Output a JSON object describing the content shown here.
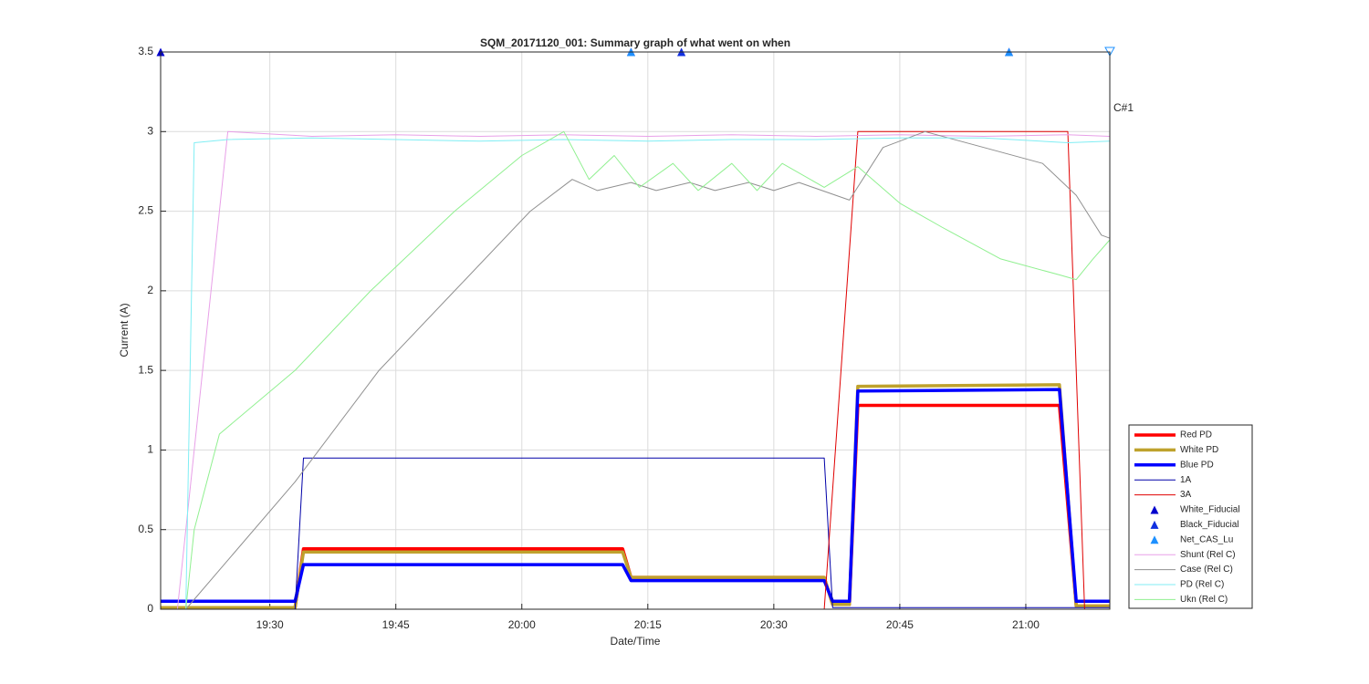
{
  "chart_data": {
    "type": "line",
    "title": "SQM_20171120_001: Summary graph of what went on when",
    "x_label": "Date/Time",
    "y_label": "Current (A)",
    "annotation": "C#1",
    "xlim": [
      "19:17",
      "21:10"
    ],
    "xticks": [
      "19:30",
      "19:45",
      "20:00",
      "20:15",
      "20:30",
      "20:45",
      "21:00"
    ],
    "ylim": [
      0,
      3.5
    ],
    "yticks": [
      0,
      0.5,
      1,
      1.5,
      2,
      2.5,
      3,
      3.5
    ],
    "grid": true,
    "legend": "outside-southeast",
    "series": [
      {
        "name": "Red PD",
        "color": "#ff0000",
        "line_width": 3.5,
        "x": [
          "19:17",
          "19:33",
          "19:34",
          "20:12",
          "20:13",
          "20:36",
          "20:37",
          "20:39",
          "20:40",
          "21:04",
          "21:06",
          "21:10"
        ],
        "values": [
          0.01,
          0.01,
          0.38,
          0.38,
          0.2,
          0.2,
          0.03,
          0.03,
          1.28,
          1.28,
          0.02,
          0.02
        ]
      },
      {
        "name": "White PD",
        "color": "#bfa22d",
        "line_width": 3.5,
        "x": [
          "19:17",
          "19:33",
          "19:34",
          "20:12",
          "20:13",
          "20:36",
          "20:37",
          "20:39",
          "20:40",
          "21:04",
          "21:06",
          "21:10"
        ],
        "values": [
          0.01,
          0.01,
          0.36,
          0.36,
          0.2,
          0.2,
          0.03,
          0.03,
          1.4,
          1.41,
          0.02,
          0.02
        ]
      },
      {
        "name": "Blue PD",
        "color": "#0000ff",
        "line_width": 3.5,
        "x": [
          "19:17",
          "19:33",
          "19:34",
          "20:12",
          "20:13",
          "20:36",
          "20:37",
          "20:39",
          "20:40",
          "21:04",
          "21:06",
          "21:10"
        ],
        "values": [
          0.05,
          0.05,
          0.28,
          0.28,
          0.18,
          0.18,
          0.05,
          0.05,
          1.37,
          1.38,
          0.05,
          0.05
        ]
      },
      {
        "name": "1A",
        "color": "#0000a8",
        "line_width": 1,
        "x": [
          "19:17",
          "19:33",
          "19:34",
          "20:36",
          "20:37",
          "21:10"
        ],
        "values": [
          0,
          0,
          0.95,
          0.95,
          0.01,
          0.01
        ]
      },
      {
        "name": "3A",
        "color": "#e00000",
        "line_width": 1,
        "x": [
          "19:17",
          "20:36",
          "20:40",
          "21:05",
          "21:07",
          "21:10"
        ],
        "values": [
          0,
          0,
          3,
          3,
          0,
          0
        ]
      },
      {
        "name": "White_Fiducial",
        "color": "#0000cd",
        "marker": "triangle",
        "x": [
          "19:17",
          "20:13",
          "20:19",
          "20:58"
        ],
        "values": [
          3.5,
          3.5,
          3.5,
          3.5
        ]
      },
      {
        "name": "Black_Fiducial",
        "color": "#1030e0",
        "marker": "triangle",
        "x": [
          "20:13",
          "20:19",
          "20:58"
        ],
        "values": [
          3.5,
          3.5,
          3.5
        ]
      },
      {
        "name": "Net_CAS_Lu",
        "color": "#1e90ff",
        "marker": "triangle",
        "x": [
          "20:13",
          "20:58"
        ],
        "values": [
          3.5,
          3.5
        ]
      },
      {
        "name": "Shunt (Rel C)",
        "color": "#e8a0e8",
        "line_width": 1,
        "x": [
          "19:17",
          "19:19",
          "19:25",
          "19:35",
          "19:45",
          "19:55",
          "20:05",
          "20:15",
          "20:25",
          "20:35",
          "20:45",
          "20:55",
          "21:05",
          "21:10"
        ],
        "values": [
          0,
          0,
          3,
          2.97,
          2.98,
          2.97,
          2.98,
          2.97,
          2.98,
          2.97,
          2.98,
          2.97,
          2.98,
          2.97
        ]
      },
      {
        "name": "Case (Rel C)",
        "color": "#909090",
        "line_width": 1,
        "x": [
          "19:17",
          "19:20",
          "19:33",
          "19:43",
          "19:52",
          "20:01",
          "20:06",
          "20:09",
          "20:13",
          "20:16",
          "20:20",
          "20:23",
          "20:27",
          "20:30",
          "20:33",
          "20:39",
          "20:43",
          "20:48",
          "20:55",
          "21:02",
          "21:06",
          "21:09",
          "21:10"
        ],
        "values": [
          0,
          0,
          0.8,
          1.5,
          2,
          2.5,
          2.7,
          2.63,
          2.68,
          2.63,
          2.68,
          2.63,
          2.68,
          2.63,
          2.68,
          2.57,
          2.9,
          3,
          2.9,
          2.8,
          2.6,
          2.35,
          2.33
        ]
      },
      {
        "name": "PD (Rel C)",
        "color": "#80eef4",
        "line_width": 1,
        "x": [
          "19:17",
          "19:20",
          "19:21",
          "19:25",
          "19:35",
          "19:45",
          "19:55",
          "20:05",
          "20:15",
          "20:25",
          "20:35",
          "20:45",
          "20:55",
          "21:05",
          "21:10"
        ],
        "values": [
          0,
          0,
          2.93,
          2.95,
          2.96,
          2.95,
          2.94,
          2.95,
          2.94,
          2.95,
          2.95,
          2.96,
          2.96,
          2.93,
          2.94
        ]
      },
      {
        "name": "Ukn (Rel C)",
        "color": "#90f090",
        "line_width": 1,
        "x": [
          "19:17",
          "19:20",
          "19:21",
          "19:24",
          "19:33",
          "19:42",
          "19:52",
          "20:00",
          "20:05",
          "20:08",
          "20:11",
          "20:14",
          "20:18",
          "20:21",
          "20:25",
          "20:28",
          "20:31",
          "20:36",
          "20:40",
          "20:45",
          "20:50",
          "20:57",
          "21:04",
          "21:06",
          "21:08",
          "21:10"
        ],
        "values": [
          0,
          0,
          0.5,
          1.1,
          1.5,
          2,
          2.5,
          2.85,
          3,
          2.7,
          2.85,
          2.65,
          2.8,
          2.63,
          2.8,
          2.63,
          2.8,
          2.65,
          2.78,
          2.55,
          2.4,
          2.2,
          2.1,
          2.07,
          2.2,
          2.32
        ]
      }
    ]
  }
}
